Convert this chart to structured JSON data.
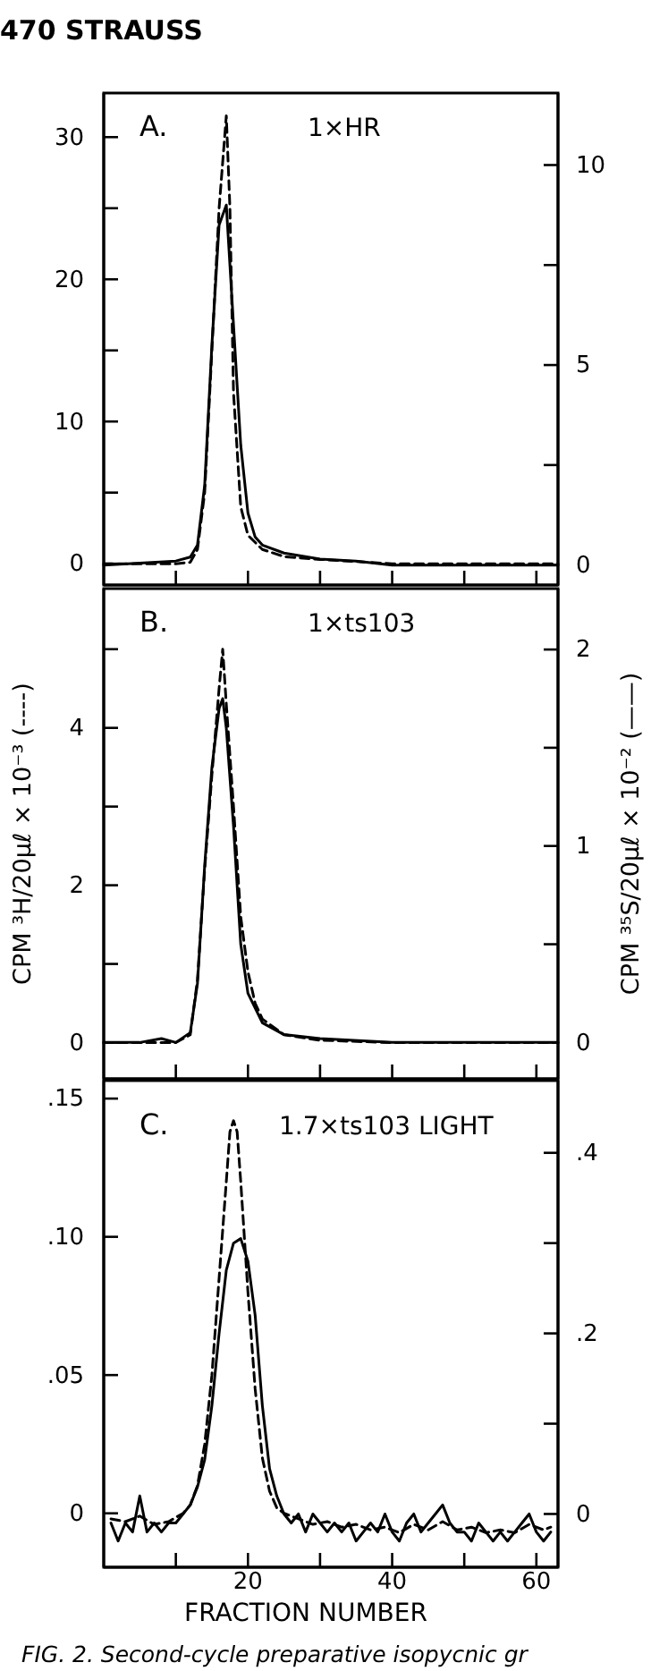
{
  "chart_data": [
    {
      "type": "line",
      "annotations": [
        "470 STRAUSS",
        {
          "text": "A."
        },
        {
          "text": "1×HR"
        }
      ],
      "xlim": [
        0,
        63
      ],
      "xticks": [
        {
          "value": 10,
          "label": null
        },
        {
          "value": 20,
          "label": null
        },
        {
          "value": 30,
          "label": null
        },
        {
          "value": 40,
          "label": null
        },
        {
          "value": 50,
          "label": null
        },
        {
          "value": 60,
          "label": null
        }
      ],
      "ylim": [
        -1.5,
        33.1
      ],
      "yticks": [
        0,
        {
          "value": 5,
          "label": null
        },
        10,
        {
          "value": 15,
          "label": null
        },
        20,
        {
          "value": 25,
          "label": null
        },
        30
      ],
      "y2lim": [
        -0.5,
        11.8
      ],
      "y2ticks": [
        0,
        {
          "value": 2.5,
          "label": null
        },
        5,
        {
          "value": 7.5,
          "label": null
        },
        10
      ],
      "tick_labels": "y",
      "series": [
        {
          "color": "#000000",
          "line_style": "dashed",
          "x": [
            0,
            5,
            10,
            12,
            13,
            14,
            15,
            16,
            17,
            17.5,
            18,
            19,
            20,
            22,
            25,
            30,
            40,
            50,
            60,
            63
          ],
          "values": [
            0,
            0,
            0,
            0.1,
            1,
            5,
            15,
            25,
            31.5,
            25,
            12,
            4,
            2,
            1,
            0.5,
            0.3,
            0,
            0,
            0,
            0
          ]
        },
        {
          "color": "#000000",
          "line_style": "solid",
          "axis": "y2",
          "x": [
            0,
            5,
            10,
            12,
            13,
            14,
            15,
            16,
            17,
            18,
            19,
            20,
            21,
            22,
            25,
            30,
            35,
            40,
            63
          ],
          "values": [
            0,
            0.05,
            0.1,
            0.2,
            0.5,
            2,
            5.5,
            8.5,
            9,
            6,
            3,
            1.3,
            0.7,
            0.5,
            0.3,
            0.15,
            0.1,
            0,
            0
          ]
        }
      ]
    },
    {
      "type": "line",
      "annotations": [
        {
          "text": "B."
        },
        {
          "text": "1×ts103"
        }
      ],
      "ylabel": "CPM ³H/20μℓ × 10⁻³ (----)",
      "y2label": "CPM ³⁵S/20μℓ × 10⁻² (——)",
      "xlim": [
        0,
        63
      ],
      "xticks": [
        {
          "value": 10,
          "label": null
        },
        {
          "value": 20,
          "label": null
        },
        {
          "value": 30,
          "label": null
        },
        {
          "value": 40,
          "label": null
        },
        {
          "value": 50,
          "label": null
        },
        {
          "value": 60,
          "label": null
        }
      ],
      "ylim": [
        -0.46,
        5.77
      ],
      "yticks": [
        0,
        {
          "value": 1,
          "label": null
        },
        2,
        {
          "value": 3,
          "label": null
        },
        4,
        {
          "value": 5,
          "label": null
        }
      ],
      "y2lim": [
        -0.185,
        2.31
      ],
      "y2ticks": [
        0,
        {
          "value": 0.5,
          "label": null
        },
        1,
        {
          "value": 1.5,
          "label": null
        },
        2
      ],
      "tick_labels": "y",
      "series": [
        {
          "color": "#000000",
          "line_style": "dashed",
          "x": [
            0,
            5,
            10,
            12,
            13,
            14,
            15,
            16,
            16.5,
            17,
            18,
            19,
            20,
            21,
            22,
            25,
            30,
            40,
            63
          ],
          "values": [
            0,
            0,
            0,
            0.1,
            0.8,
            2.2,
            3.4,
            4.5,
            5.0,
            4.3,
            3.0,
            1.6,
            0.9,
            0.5,
            0.3,
            0.1,
            0.03,
            0,
            0
          ]
        },
        {
          "color": "#000000",
          "line_style": "solid",
          "axis": "y2",
          "x": [
            0,
            5,
            8,
            10,
            12,
            13,
            14,
            15,
            16,
            16.5,
            17,
            18,
            19,
            20,
            22,
            25,
            30,
            40,
            63
          ],
          "values": [
            0,
            0,
            0.02,
            0,
            0.05,
            0.3,
            0.9,
            1.4,
            1.7,
            1.75,
            1.6,
            1.1,
            0.5,
            0.25,
            0.1,
            0.04,
            0.02,
            0,
            0
          ]
        }
      ]
    },
    {
      "type": "line",
      "annotations": [
        {
          "text": "C."
        },
        {
          "text": "1.7×ts103 LIGHT"
        },
        "FIG. 2. Second-cycle preparative isopycnic gr"
      ],
      "xlabel": "FRACTION NUMBER",
      "xlim": [
        0,
        63
      ],
      "xticks": [
        {
          "value": 10,
          "label": null
        },
        20,
        {
          "value": 30,
          "label": null
        },
        40,
        {
          "value": 50,
          "label": null
        },
        60
      ],
      "ylim": [
        -0.0195,
        0.1565
      ],
      "yticks": [
        {
          "value": 0,
          "label": "0"
        },
        {
          "value": 0.05,
          "label": ".05"
        },
        {
          "value": 0.1,
          "label": ".10"
        },
        {
          "value": 0.15,
          "label": ".15"
        }
      ],
      "y2lim": [
        -0.059,
        0.48
      ],
      "y2ticks": [
        {
          "value": 0,
          "label": "0"
        },
        {
          "value": 0.1,
          "label": null
        },
        {
          "value": 0.2,
          "label": ".2"
        },
        {
          "value": 0.3,
          "label": null
        },
        {
          "value": 0.4,
          "label": ".4"
        }
      ],
      "series": [
        {
          "color": "#000000",
          "line_style": "dashed",
          "x": [
            1,
            3,
            5,
            7,
            9,
            11,
            12,
            13,
            14,
            15,
            16,
            17,
            17.5,
            18,
            18.5,
            19,
            20,
            21,
            22,
            23,
            24,
            25,
            27,
            29,
            31,
            33,
            35,
            37,
            39,
            41,
            43,
            45,
            47,
            49,
            51,
            53,
            55,
            57,
            59,
            61,
            62
          ],
          "values": [
            -0.002,
            -0.003,
            -0.001,
            -0.004,
            -0.003,
            0,
            0.003,
            0.01,
            0.025,
            0.05,
            0.085,
            0.12,
            0.138,
            0.142,
            0.138,
            0.12,
            0.08,
            0.045,
            0.02,
            0.008,
            0.002,
            0,
            -0.002,
            -0.004,
            -0.003,
            -0.005,
            -0.004,
            -0.006,
            -0.005,
            -0.007,
            -0.004,
            -0.006,
            -0.003,
            -0.006,
            -0.005,
            -0.007,
            -0.006,
            -0.007,
            -0.004,
            -0.006,
            -0.005
          ]
        },
        {
          "color": "#000000",
          "line_style": "solid",
          "axis": "y2",
          "x": [
            1,
            2,
            3,
            4,
            5,
            6,
            7,
            8,
            9,
            10,
            11,
            12,
            13,
            14,
            15,
            16,
            17,
            18,
            19,
            20,
            21,
            22,
            23,
            24,
            25,
            26,
            27,
            28,
            29,
            30,
            31,
            32,
            33,
            34,
            35,
            36,
            37,
            38,
            39,
            40,
            41,
            42,
            43,
            44,
            45,
            46,
            47,
            48,
            49,
            50,
            51,
            52,
            53,
            54,
            55,
            56,
            57,
            58,
            59,
            60,
            61,
            62
          ],
          "values": [
            -0.01,
            -0.03,
            -0.01,
            -0.02,
            0.02,
            -0.02,
            -0.01,
            -0.02,
            -0.01,
            -0.01,
            0,
            0.01,
            0.03,
            0.06,
            0.12,
            0.2,
            0.27,
            0.3,
            0.305,
            0.28,
            0.22,
            0.12,
            0.05,
            0.02,
            0,
            -0.01,
            0,
            -0.02,
            0,
            -0.01,
            -0.02,
            -0.01,
            -0.02,
            -0.01,
            -0.03,
            -0.02,
            -0.01,
            -0.02,
            0,
            -0.02,
            -0.03,
            -0.01,
            0,
            -0.02,
            -0.01,
            0,
            0.01,
            -0.01,
            -0.02,
            -0.02,
            -0.03,
            -0.01,
            -0.02,
            -0.03,
            -0.02,
            -0.03,
            -0.02,
            -0.01,
            0,
            -0.02,
            -0.03,
            -0.02
          ]
        }
      ]
    }
  ]
}
